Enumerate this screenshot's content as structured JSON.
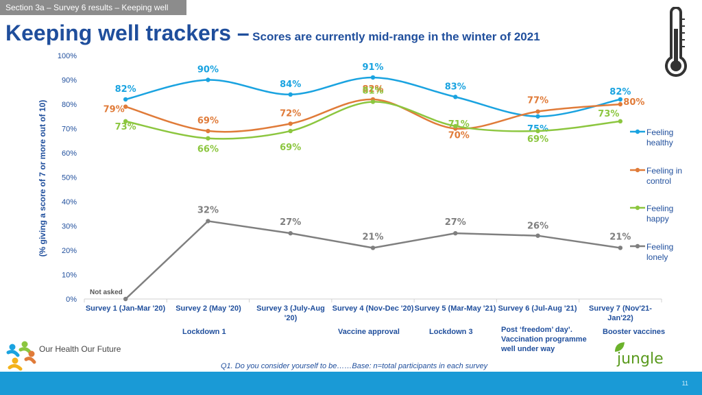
{
  "section_tab": "Section 3a – Survey 6 results – Keeping well",
  "title": "Keeping well trackers –",
  "subtitle": "Scores are currently mid-range in the winter of 2021",
  "thermometer_icon": "thermometer-icon",
  "chart_data": {
    "type": "line",
    "ylabel": "(% giving a score of 7 or more out of 10)",
    "ylim": [
      0,
      100
    ],
    "yticks": [
      "0%",
      "10%",
      "20%",
      "30%",
      "40%",
      "50%",
      "60%",
      "70%",
      "80%",
      "90%",
      "100%"
    ],
    "categories": [
      "Survey 1 (Jan-Mar '20)",
      "Survey 2 (May '20)",
      "Survey 3 (July-Aug '20)",
      "Survey 4 (Nov-Dec '20)",
      "Survey 5 (Mar-May '21)",
      "Survey 6 (Jul-Aug '21)",
      "Survey 7 (Nov'21-Jan'22)"
    ],
    "series": [
      {
        "name": "Feeling healthy",
        "color": "#1aa3e0",
        "values": [
          82,
          90,
          84,
          91,
          83,
          75,
          82
        ],
        "labels": [
          "82%",
          "90%",
          "84%",
          "91%",
          "83%",
          "75%",
          "82%"
        ]
      },
      {
        "name": "Feeling in control",
        "color": "#e07b39",
        "values": [
          79,
          69,
          72,
          82,
          70,
          77,
          80
        ],
        "labels": [
          "79%",
          "69%",
          "72%",
          "82%",
          "70%",
          "77%",
          "80%"
        ]
      },
      {
        "name": "Feeling happy",
        "color": "#8cc63f",
        "values": [
          73,
          66,
          69,
          81,
          71,
          69,
          73
        ],
        "labels": [
          "73%",
          "66%",
          "69%",
          "81%",
          "71%",
          "69%",
          "73%"
        ]
      },
      {
        "name": "Feeling lonely",
        "color": "#7f7f7f",
        "values": [
          0,
          32,
          27,
          21,
          27,
          26,
          21
        ],
        "labels": [
          "",
          "32%",
          "27%",
          "21%",
          "27%",
          "26%",
          "21%"
        ]
      }
    ],
    "annotations": [
      "Not asked"
    ],
    "grid": false,
    "legend_position": "right"
  },
  "events": [
    "Lockdown 1",
    "Vaccine approval",
    "Lockdown 3",
    "Post ‘freedom’ day’. Vaccination programme well under way",
    "Booster vaccines"
  ],
  "footnote": "Q1. Do you consider yourself to be……Base: n=total participants in each survey",
  "logos": {
    "left": "Our Health Our Future",
    "right": "jungle green"
  },
  "page_number": "11"
}
